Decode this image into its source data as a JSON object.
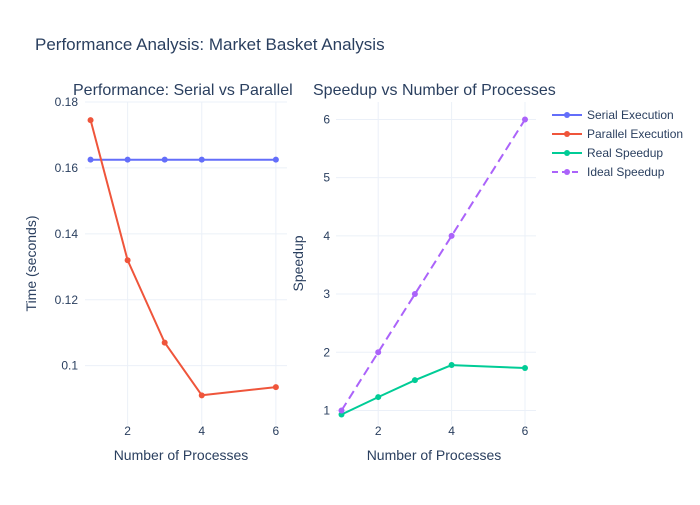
{
  "figure": {
    "title": "Performance Analysis: Market Basket Analysis"
  },
  "chart_data": [
    {
      "type": "line",
      "title": "Performance: Serial vs Parallel",
      "xlabel": "Number of Processes",
      "ylabel": "Time (seconds)",
      "x": [
        1,
        2,
        3,
        4,
        6
      ],
      "xlim": [
        0.85,
        6.3
      ],
      "ylim": [
        0.082,
        0.18
      ],
      "xticks": [
        2,
        4,
        6
      ],
      "yticks": [
        0.1,
        0.12,
        0.14,
        0.16,
        0.18
      ],
      "series": [
        {
          "name": "Serial Execution",
          "values": [
            0.1625,
            0.1625,
            0.1625,
            0.1625,
            0.1625
          ],
          "color": "#636efa",
          "dash": "solid"
        },
        {
          "name": "Parallel Execution",
          "values": [
            0.1745,
            0.132,
            0.107,
            0.091,
            0.0935
          ],
          "color": "#ef553b",
          "dash": "solid"
        }
      ],
      "grid": true
    },
    {
      "type": "line",
      "title": "Speedup vs Number of Processes",
      "xlabel": "Number of Processes",
      "ylabel": "Speedup",
      "x": [
        1,
        2,
        3,
        4,
        6
      ],
      "xlim": [
        0.85,
        6.3
      ],
      "ylim": [
        0.75,
        6.3
      ],
      "xticks": [
        2,
        4,
        6
      ],
      "yticks": [
        1,
        2,
        3,
        4,
        5,
        6
      ],
      "series": [
        {
          "name": "Real Speedup",
          "values": [
            0.93,
            1.23,
            1.52,
            1.78,
            1.73
          ],
          "color": "#00cc96",
          "dash": "solid"
        },
        {
          "name": "Ideal Speedup",
          "values": [
            1,
            2,
            3,
            4,
            6
          ],
          "color": "#ab63fa",
          "dash": "dash"
        }
      ],
      "grid": true
    }
  ],
  "legend": {
    "placement": "top-right",
    "items": [
      {
        "name": "Serial Execution",
        "color": "#636efa",
        "dash": "solid"
      },
      {
        "name": "Parallel Execution",
        "color": "#ef553b",
        "dash": "solid"
      },
      {
        "name": "Real Speedup",
        "color": "#00cc96",
        "dash": "solid"
      },
      {
        "name": "Ideal Speedup",
        "color": "#ab63fa",
        "dash": "dash"
      }
    ]
  }
}
